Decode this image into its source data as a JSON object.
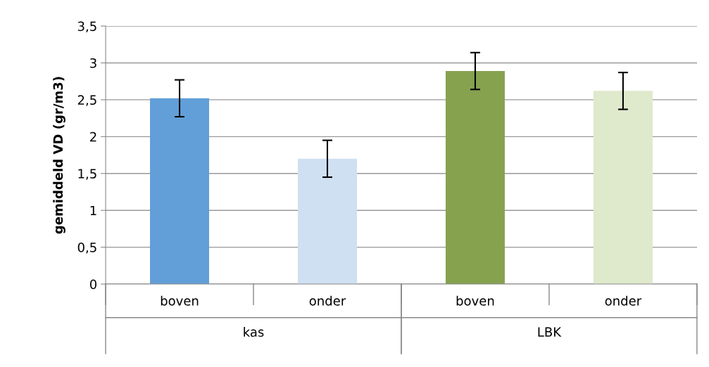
{
  "chart_data": {
    "type": "bar",
    "ylabel": "gemiddeld VD (gr/m3)",
    "categories": [
      "boven",
      "onder",
      "boven",
      "onder"
    ],
    "values": [
      2.52,
      1.7,
      2.89,
      2.62
    ],
    "errors": [
      0.25,
      0.25,
      0.25,
      0.25
    ],
    "colors": [
      "#629fd8",
      "#cfe0f2",
      "#86a24f",
      "#dfe9cc"
    ],
    "annotations": [
      "kas",
      "LBK"
    ],
    "ylim": [
      0,
      3.5
    ],
    "yticks": [
      0,
      {
        "value": 0.5,
        "label": "0,5"
      },
      1,
      {
        "value": 1.5,
        "label": "1,5"
      },
      2,
      {
        "value": 2.5,
        "label": "2,5"
      },
      3,
      {
        "value": 3.5,
        "label": "3,5"
      }
    ],
    "grid": "y"
  }
}
